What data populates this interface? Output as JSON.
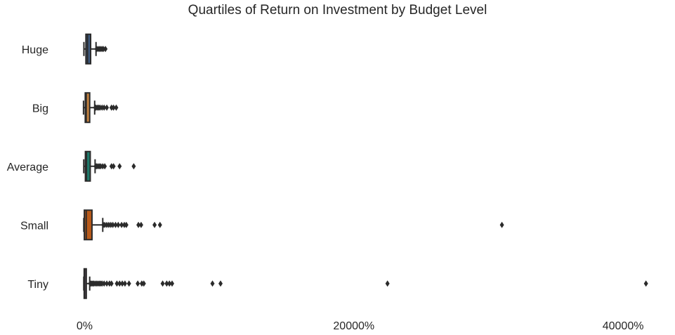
{
  "chart_data": {
    "type": "box",
    "title": "Quartiles of Return on Investment by Budget Level",
    "xlabel": "",
    "ylabel": "",
    "x_unit": "%",
    "xlim": [
      -700,
      42500
    ],
    "x_ticks": [
      0,
      20000,
      40000
    ],
    "x_tick_labels": [
      "0%",
      "20000%",
      "40000%"
    ],
    "grid": false,
    "categories": [
      "Huge",
      "Big",
      "Average",
      "Small",
      "Tiny"
    ],
    "series": [
      {
        "category": "Huge",
        "color": "#3d5a80",
        "whisker_low": -50,
        "q1": 100,
        "median": 220,
        "q3": 450,
        "whisker_high": 850,
        "outliers": [
          900,
          1000,
          1100,
          1200,
          1300,
          1400,
          1550
        ]
      },
      {
        "category": "Big",
        "color": "#c08040",
        "whisker_low": -80,
        "q1": 50,
        "median": 120,
        "q3": 380,
        "whisker_high": 750,
        "outliers": [
          800,
          850,
          950,
          1050,
          1150,
          1300,
          1450,
          1650,
          2000,
          2150,
          2350
        ]
      },
      {
        "category": "Average",
        "color": "#1f7a6a",
        "whisker_low": -60,
        "q1": 60,
        "median": 140,
        "q3": 420,
        "whisker_high": 780,
        "outliers": [
          830,
          900,
          1000,
          1100,
          1200,
          1350,
          1500,
          2000,
          2150,
          2600,
          3650
        ]
      },
      {
        "category": "Small",
        "color": "#b85a1a",
        "whisker_low": -60,
        "q1": -20,
        "median": 120,
        "q3": 550,
        "whisker_high": 1350,
        "outliers": [
          1400,
          1500,
          1650,
          1800,
          1950,
          2100,
          2300,
          2500,
          2750,
          2950,
          3100,
          4000,
          4200,
          5200,
          5600,
          31000
        ]
      },
      {
        "category": "Tiny",
        "color": "#8a6a8a",
        "whisker_low": -60,
        "q1": -30,
        "median": 10,
        "q3": 120,
        "whisker_high": 380,
        "outliers": [
          420,
          480,
          550,
          620,
          700,
          800,
          900,
          1000,
          1100,
          1200,
          1300,
          1450,
          1650,
          1850,
          2000,
          2400,
          2600,
          2800,
          3000,
          3300,
          3950,
          4250,
          4400,
          5800,
          6100,
          6300,
          6500,
          9500,
          10100,
          22500,
          41700
        ]
      }
    ]
  }
}
